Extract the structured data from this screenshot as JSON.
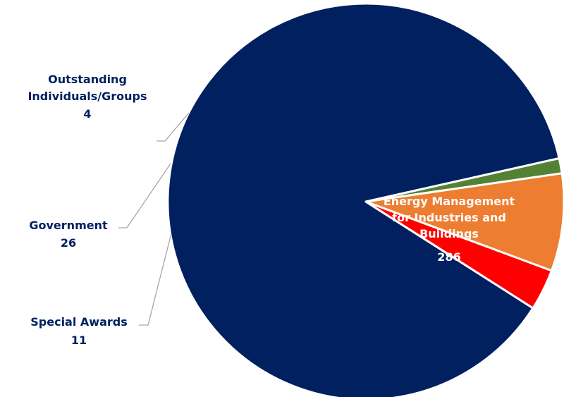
{
  "chart_data": {
    "type": "pie",
    "slices": [
      {
        "label": "Energy Management for Industries and Buildings",
        "label_lines": [
          "Energy Management",
          "for Industries and",
          "Buildings"
        ],
        "value": 286,
        "value_text": "286",
        "color": "#002060"
      },
      {
        "label": "Outstanding Individuals/Groups",
        "label_lines": [
          "Outstanding",
          "Individuals/Groups"
        ],
        "value": 4,
        "value_text": "4",
        "color": "#548235"
      },
      {
        "label": "Government",
        "label_lines": [
          "Government"
        ],
        "value": 26,
        "value_text": "26",
        "color": "#ED7D31"
      },
      {
        "label": "Special Awards",
        "label_lines": [
          "Special Awards"
        ],
        "value": 11,
        "value_text": "11",
        "color": "#FF0000"
      }
    ],
    "label_colors": {
      "inside": "#FFFFFF",
      "outside": "#002060"
    },
    "leader_line_color": "#A6A6A6"
  }
}
